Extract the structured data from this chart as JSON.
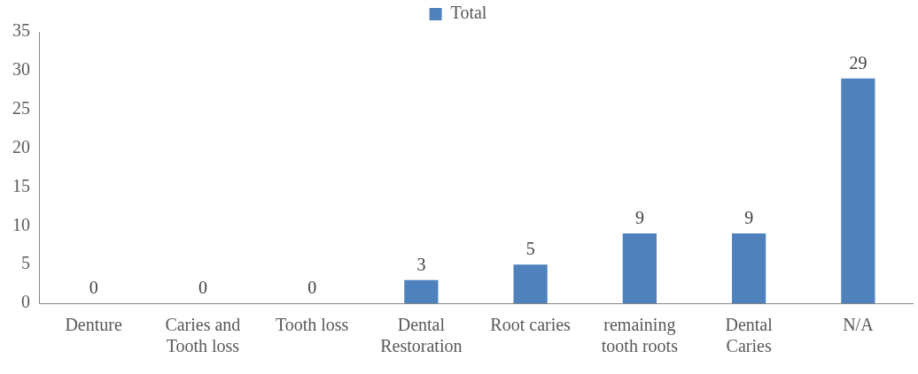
{
  "chart_data": {
    "type": "bar",
    "categories": [
      "Denture",
      "Caries and Tooth loss",
      "Tooth loss",
      "Dental Restoration",
      "Root caries",
      "remaining tooth roots",
      "Dental Caries",
      "N/A"
    ],
    "series": [
      {
        "name": "Total",
        "color": "#4f81bd",
        "values": [
          0,
          0,
          0,
          3,
          5,
          9,
          9,
          29
        ]
      }
    ],
    "ylim": [
      0,
      35
    ],
    "yticks": [
      0,
      5,
      10,
      15,
      20,
      25,
      30,
      35
    ],
    "grid": false,
    "legend": "top",
    "data_labels": true
  }
}
